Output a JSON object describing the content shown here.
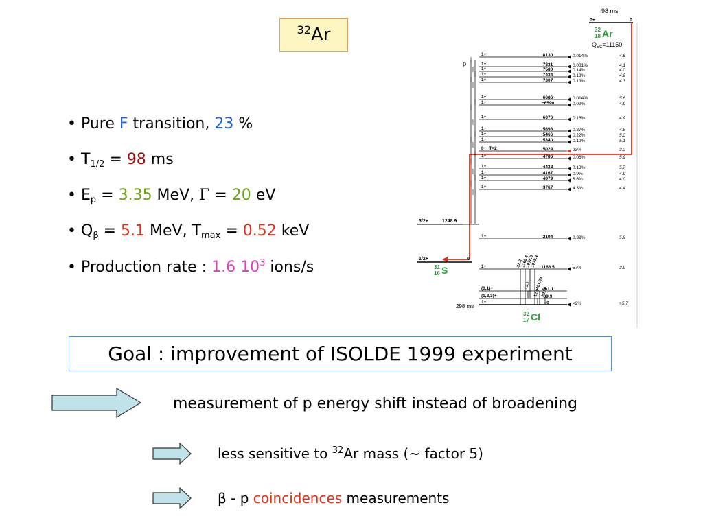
{
  "title": {
    "mass": "32",
    "element": "Ar"
  },
  "bullets": [
    {
      "dot": "•",
      "pre": "Pure ",
      "hl": "F",
      "mid": " transition, ",
      "hl2": "23",
      "post": " %"
    },
    {
      "dot": "•",
      "pre": "T",
      "sub": "1/2",
      "mid": " = ",
      "hl": "98",
      "post": " ms"
    },
    {
      "dot": "•",
      "pre": "E",
      "sub": "p",
      "mid": " = ",
      "hl": "3.35",
      "post": " MeV, ",
      "gamma": "Γ",
      "eq": " = ",
      "hl2": "20",
      "post2": " eV"
    },
    {
      "dot": "•",
      "pre": "Q",
      "sub": "β",
      "mid": " = ",
      "hl": "5.1",
      "post": " MeV, T",
      "sub2": "max",
      "eq": " = ",
      "hl2": "0.52",
      "post2": " keV"
    },
    {
      "dot": "•",
      "pre": "Production rate : ",
      "hl": "1.6 10",
      "sup": "3",
      "post": " ions/s"
    }
  ],
  "goal": "Goal : improvement of ISOLDE 1999 experiment",
  "points": [
    {
      "text": "measurement of p energy shift instead of broadening"
    },
    {
      "pre": "less sensitive to ",
      "sup": "32",
      "post": "Ar mass (~ factor 5)"
    },
    {
      "pre": "β - p  ",
      "hl": "coincidences",
      "post": " measurements"
    }
  ],
  "colors": {
    "arrow_fill": "#bfe3e8",
    "arrow_stroke": "#333333",
    "red_line": "#e0321a",
    "nucleus_green": "#2aa03a"
  },
  "scheme": {
    "parent": {
      "halflife": "98 ms",
      "spin": "0+",
      "energy": "0",
      "mass": "32",
      "z": "18",
      "symbol": "Ar",
      "qec": "Q",
      "qec_sub": "EC",
      "qec_val": "=11150"
    },
    "proton_label": "p",
    "levels": [
      {
        "spin": "1+",
        "energy": "8130",
        "br": "0.014%",
        "logft": "4.6"
      },
      {
        "spin": "1+",
        "energy": "7831",
        "br": "0.081%",
        "logft": "4.1"
      },
      {
        "spin": "1+",
        "energy": "7580",
        "br": "0.14%",
        "logft": "4.0"
      },
      {
        "spin": "1+",
        "energy": "7434",
        "br": "0.13%",
        "logft": "4.2"
      },
      {
        "spin": "1+",
        "energy": "7307",
        "br": "0.13%",
        "logft": "4.3"
      },
      {
        "spin": "1+",
        "energy": "6686",
        "br": "0.014%",
        "logft": "5.6"
      },
      {
        "spin": "1+",
        "energy": "~6590",
        "br": "0.09%",
        "logft": "4.9"
      },
      {
        "spin": "1+",
        "energy": "6076",
        "br": "0.16%",
        "logft": "4.9"
      },
      {
        "spin": "1+",
        "energy": "5698",
        "br": "0.27%",
        "logft": "4.8"
      },
      {
        "spin": "1+",
        "energy": "5466",
        "br": "0.22%",
        "logft": "5.0"
      },
      {
        "spin": "1+",
        "energy": "5340",
        "br": "0.19%",
        "logft": "5.1"
      },
      {
        "spin": "0+; T=2",
        "energy": "5024",
        "br": "23%",
        "logft": "3.2"
      },
      {
        "spin": "1+",
        "energy": "4786",
        "br": "0.06%",
        "logft": "5.9"
      },
      {
        "spin": "1+",
        "energy": "4432",
        "br": "0.13%",
        "logft": "5.7"
      },
      {
        "spin": "1+",
        "energy": "4167",
        "br": "0.9%",
        "logft": "4.9"
      },
      {
        "spin": "1+",
        "energy": "4079",
        "br": "8.6%",
        "logft": "4.0"
      },
      {
        "spin": "1+",
        "energy": "3767",
        "br": "4.3%",
        "logft": "4.4"
      },
      {
        "spin": "1+",
        "energy": "2194",
        "br": "0.39%",
        "logft": "5.9"
      },
      {
        "spin": "1+",
        "energy": "1168.5",
        "br": "57%",
        "logft": "3.9"
      },
      {
        "spin": "(0,1)+",
        "energy": "461.1",
        "br": "",
        "logft": ""
      },
      {
        "spin": "(1,2,3)+",
        "energy": "89.9",
        "br": "",
        "logft": ""
      },
      {
        "spin": "1+",
        "energy": "0",
        "br": "<2%",
        "logft": ">5.7"
      }
    ],
    "s31": {
      "spin_excited": "3/2+",
      "energy_excited": "1248.9",
      "spin_ground": "1/2+",
      "energy_ground": "0",
      "mass": "31",
      "z": "16",
      "symbol": "S"
    },
    "cl32": {
      "halflife": "298 ms",
      "mass": "32",
      "z": "17",
      "symbol": "Cl"
    },
    "gammas": [
      "32.8",
      "1168.4",
      "1078.5",
      "1078.4",
      "461.09",
      "12.1",
      "89.59",
      "12.0"
    ]
  }
}
